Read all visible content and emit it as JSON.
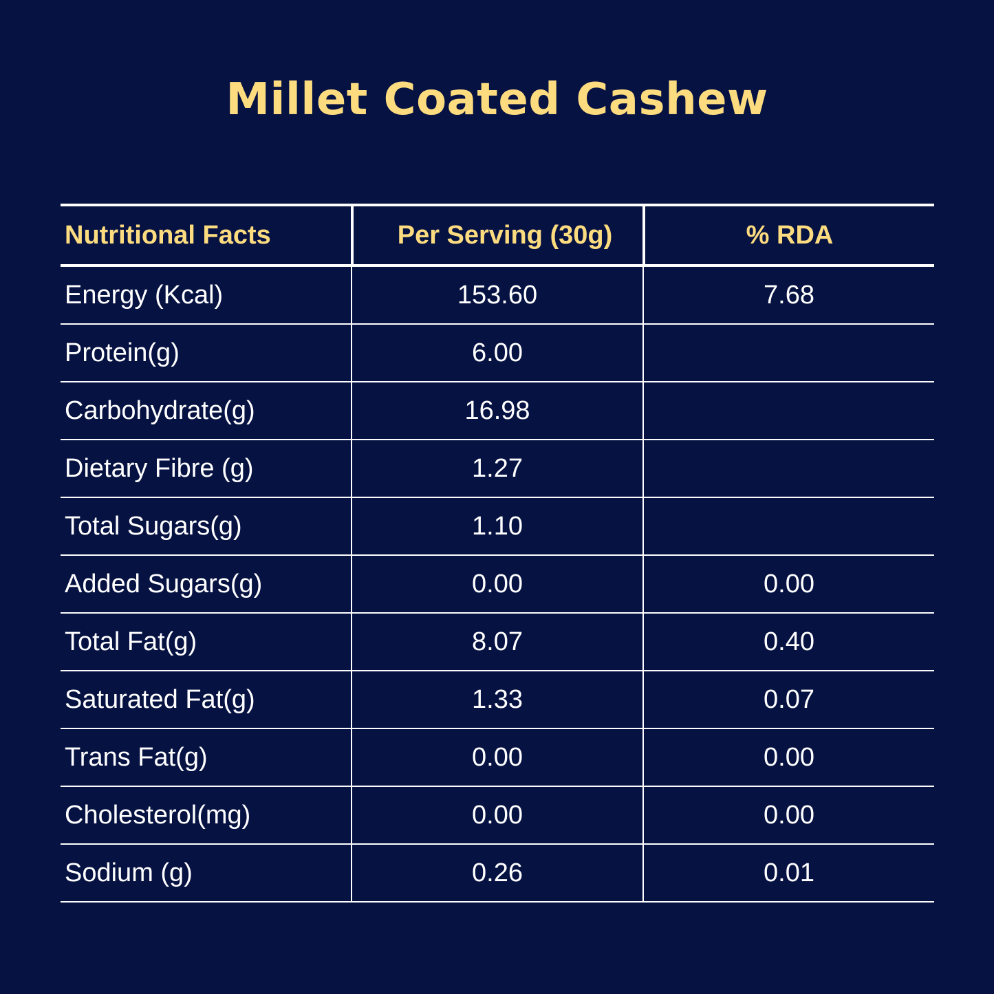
{
  "title": "Millet Coated Cashew",
  "colors": {
    "background": "#061242",
    "accent": "#fddc80",
    "text": "#ffffff"
  },
  "table": {
    "headers": [
      "Nutritional Facts",
      "Per Serving (30g)",
      "% RDA"
    ],
    "rows": [
      {
        "name": "Energy (Kcal)",
        "per_serving": "153.60",
        "rda": "7.68"
      },
      {
        "name": "Protein(g)",
        "per_serving": "6.00",
        "rda": ""
      },
      {
        "name": "Carbohydrate(g)",
        "per_serving": "16.98",
        "rda": ""
      },
      {
        "name": "Dietary Fibre (g)",
        "per_serving": "1.27",
        "rda": ""
      },
      {
        "name": "Total Sugars(g)",
        "per_serving": "1.10",
        "rda": ""
      },
      {
        "name": "Added Sugars(g)",
        "per_serving": "0.00",
        "rda": "0.00"
      },
      {
        "name": "Total Fat(g)",
        "per_serving": "8.07",
        "rda": "0.40"
      },
      {
        "name": "Saturated Fat(g)",
        "per_serving": "1.33",
        "rda": "0.07"
      },
      {
        "name": "Trans Fat(g)",
        "per_serving": "0.00",
        "rda": "0.00"
      },
      {
        "name": "Cholesterol(mg)",
        "per_serving": "0.00",
        "rda": "0.00"
      },
      {
        "name": "Sodium (g)",
        "per_serving": "0.26",
        "rda": "0.01"
      }
    ]
  }
}
